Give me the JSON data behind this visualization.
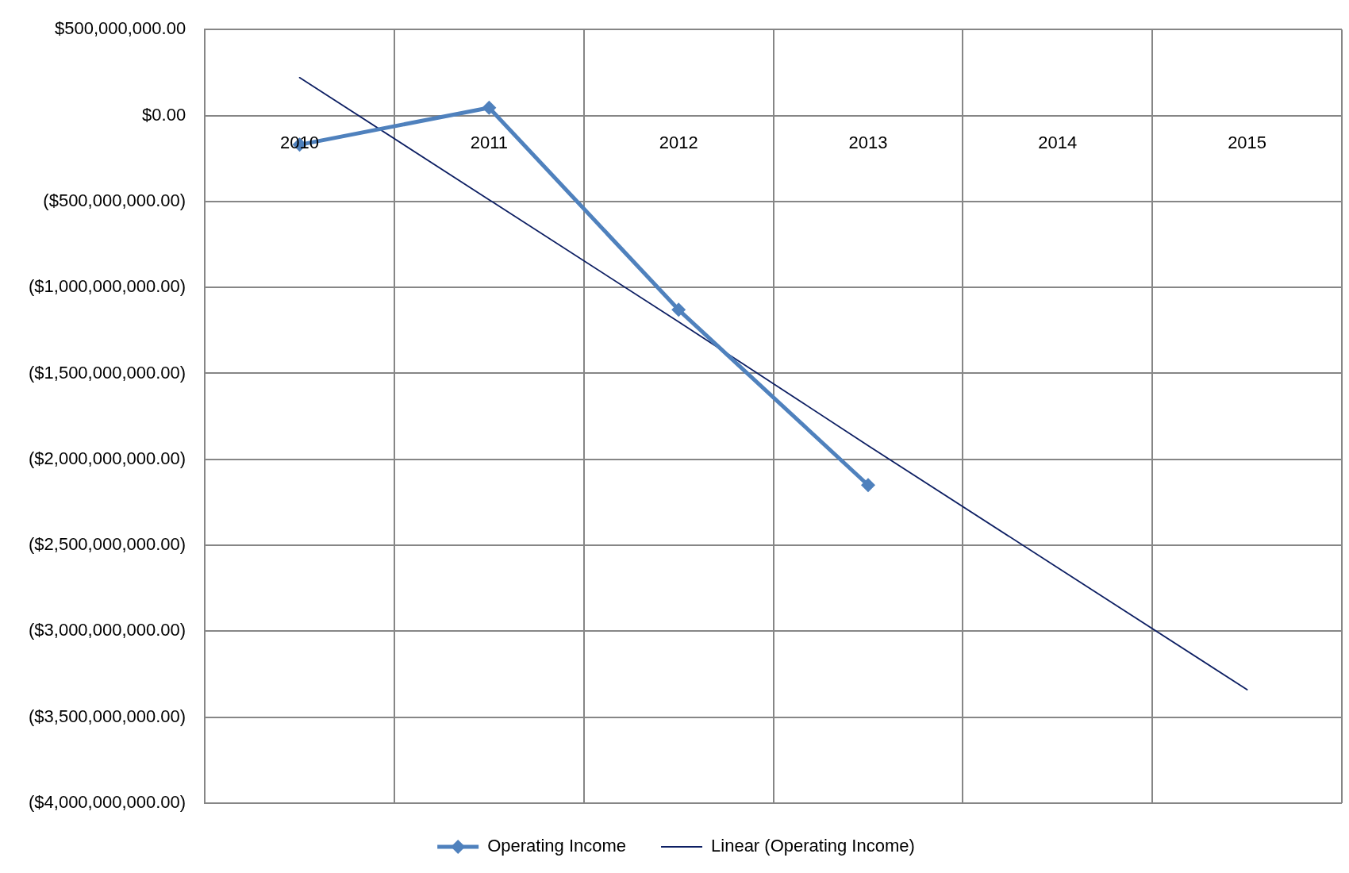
{
  "chart_data": {
    "type": "line",
    "categories": [
      "2010",
      "2011",
      "2012",
      "2013",
      "2014",
      "2015"
    ],
    "series": [
      {
        "name": "Operating Income",
        "color": "#4f81bd",
        "values": [
          -170000000,
          45000000,
          -1130000000,
          -2150000000,
          null,
          null
        ]
      },
      {
        "name": "Linear (Operating Income)",
        "type": "line",
        "color": "#0d1f63",
        "values": [
          220000000,
          -490000000,
          -1200000000,
          -1920000000,
          -2630000000,
          -3340000000
        ],
        "marker": "none"
      }
    ],
    "ylim": [
      -4000000000,
      500000000
    ],
    "yticks": [
      {
        "value": 500000000,
        "label": "$500,000,000.00"
      },
      {
        "value": 0,
        "label": "$0.00"
      },
      {
        "value": -500000000,
        "label": "($500,000,000.00)"
      },
      {
        "value": -1000000000,
        "label": "($1,000,000,000.00)"
      },
      {
        "value": -1500000000,
        "label": "($1,500,000,000.00)"
      },
      {
        "value": -2000000000,
        "label": "($2,000,000,000.00)"
      },
      {
        "value": -2500000000,
        "label": "($2,500,000,000.00)"
      },
      {
        "value": -3000000000,
        "label": "($3,000,000,000.00)"
      },
      {
        "value": -3500000000,
        "label": "($3,500,000,000.00)"
      },
      {
        "value": -4000000000,
        "label": "($4,000,000,000.00)"
      }
    ],
    "grid": true,
    "legend": "bottom",
    "marker": "diamond"
  }
}
